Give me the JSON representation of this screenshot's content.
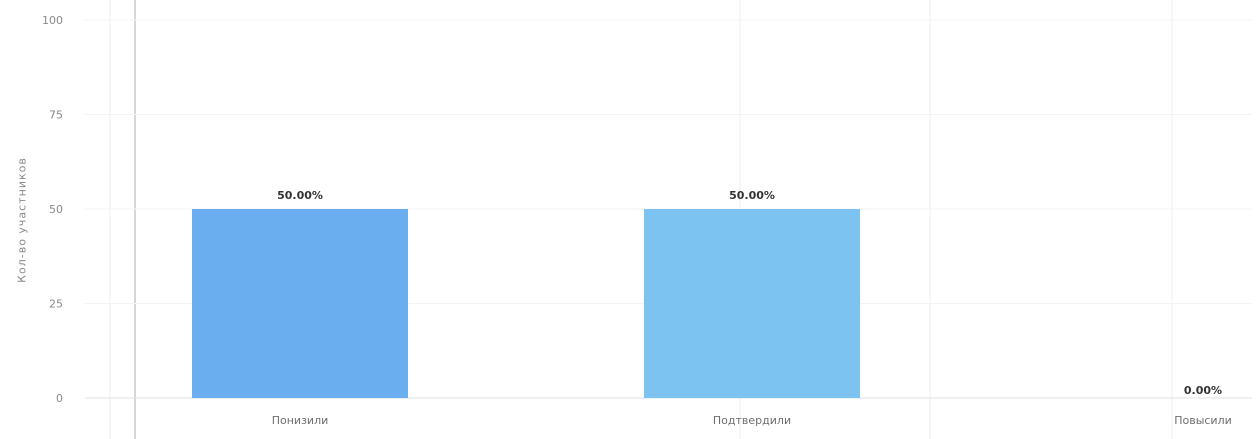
{
  "chart_data": {
    "type": "bar",
    "title": "",
    "xlabel": "",
    "ylabel": "Кол-во участников",
    "ylim": [
      0,
      100
    ],
    "yticks": [
      "0",
      "25",
      "50",
      "75",
      "100"
    ],
    "categories": [
      "Понизили",
      "Подтвердили",
      "Повысили"
    ],
    "values": [
      50,
      50,
      0
    ],
    "data_labels": [
      "50.00%",
      "50.00%",
      "0.00%"
    ],
    "grid": true,
    "colors": [
      "#6aaef0",
      "#7cc3f2",
      "#7cc3f2"
    ]
  }
}
